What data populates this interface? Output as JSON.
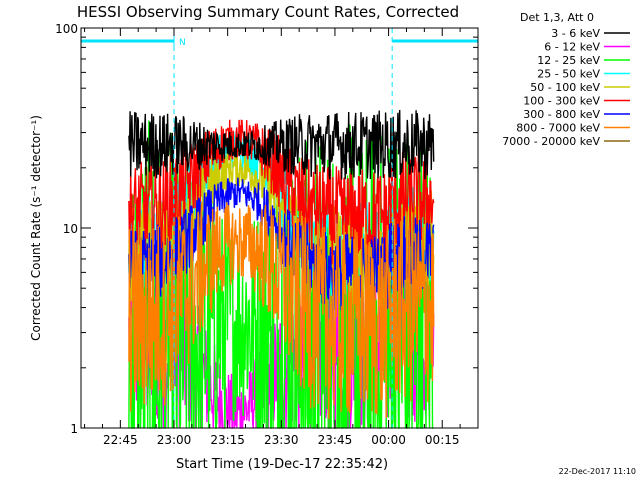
{
  "chart_data": {
    "type": "line",
    "title": "HESSI Observing Summary Count Rates, Corrected",
    "xlabel": "Start Time (19-Dec-17 22:35:42)",
    "ylabel": "Corrected Count Rate (s⁻¹ detector⁻¹)",
    "yscale": "log",
    "ylim": [
      1,
      100
    ],
    "xlim_minutes": [
      -11,
      100
    ],
    "x_ticks": [
      {
        "label": "22:45",
        "minute": 0
      },
      {
        "label": "23:00",
        "minute": 15
      },
      {
        "label": "23:15",
        "minute": 30
      },
      {
        "label": "23:30",
        "minute": 45
      },
      {
        "label": "23:45",
        "minute": 60
      },
      {
        "label": "00:00",
        "minute": 75
      },
      {
        "label": "00:15",
        "minute": 90
      }
    ],
    "y_ticks": [
      {
        "label": "1",
        "value": 1
      },
      {
        "label": "10",
        "value": 10
      },
      {
        "label": "100",
        "value": 100
      }
    ],
    "legend_title": "Det 1,3, Att 0",
    "legend_placement": "top-right",
    "data_span_minutes": [
      2.4,
      87.6
    ],
    "series": [
      {
        "name": "3 - 6 keV",
        "color": "#000000",
        "baseline": 26.0,
        "peak": 0,
        "noise": 0.07
      },
      {
        "name": "6 - 12 keV",
        "color": "#ff00ff",
        "baseline": 2.6,
        "peak": 1.2,
        "noise": 0.18
      },
      {
        "name": "12 - 25 keV",
        "color": "#00ff00",
        "baseline": 2.0,
        "peak": 3.5,
        "noise": 0.5
      },
      {
        "name": "25 - 50 keV",
        "color": "#00ffff",
        "baseline": 8.0,
        "peak": 25.0,
        "noise": 0.1
      },
      {
        "name": "50 - 100 keV",
        "color": "#cccc00",
        "baseline": 7.5,
        "peak": 20.0,
        "noise": 0.1
      },
      {
        "name": "100 - 300 keV",
        "color": "#ff0000",
        "baseline": 12.0,
        "peak": 28.0,
        "noise": 0.1
      },
      {
        "name": "300 - 800 keV",
        "color": "#0000ff",
        "baseline": 6.3,
        "peak": 15.0,
        "noise": 0.08
      },
      {
        "name": "800 - 7000 keV",
        "color": "#ff8000",
        "baseline": 3.5,
        "peak": 8.5,
        "noise": 0.2
      },
      {
        "name": "7000 - 20000 keV",
        "color": "#8b6914",
        "baseline": null,
        "peak": null,
        "noise": 0
      }
    ],
    "flare_peak_minute": 33,
    "flare_width_minutes": 9,
    "spacecraft_night_minutes": [
      [
        -11,
        15
      ],
      [
        76,
        100
      ]
    ],
    "saa_flag_label": "N",
    "timestamp": "22-Dec-2017 11:10"
  }
}
